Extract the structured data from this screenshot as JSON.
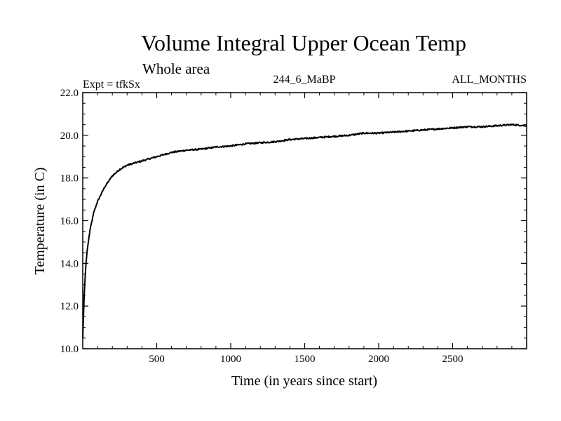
{
  "chart_data": {
    "type": "line",
    "title": "Volume Integral Upper Ocean Temp",
    "subtitle": "Whole area",
    "experiment": "Expt = tfkSx",
    "run_label": "244_6_MaBP",
    "months_label": "ALL_MONTHS",
    "xlabel": "Time (in years since start)",
    "ylabel": "Temperature (in C)",
    "xlim": [
      0,
      3000
    ],
    "ylim": [
      10.0,
      22.0
    ],
    "x_ticks": [
      "500",
      "1000",
      "1500",
      "2000",
      "2500"
    ],
    "y_ticks": [
      "10.0",
      "12.0",
      "14.0",
      "16.0",
      "18.0",
      "20.0",
      "22.0"
    ],
    "grid": false,
    "series": [
      {
        "name": "Volume Integral Upper Ocean Temp",
        "x": [
          0,
          5,
          10,
          20,
          30,
          50,
          75,
          100,
          150,
          200,
          250,
          300,
          350,
          400,
          500,
          600,
          700,
          800,
          900,
          1000,
          1100,
          1200,
          1300,
          1400,
          1500,
          1600,
          1700,
          1800,
          1900,
          2000,
          2100,
          2200,
          2300,
          2400,
          2500,
          2600,
          2700,
          2800,
          2900,
          3000
        ],
        "y": [
          10.5,
          11.5,
          12.5,
          13.8,
          14.6,
          15.6,
          16.4,
          16.9,
          17.6,
          18.1,
          18.4,
          18.6,
          18.7,
          18.8,
          19.0,
          19.2,
          19.3,
          19.35,
          19.45,
          19.5,
          19.6,
          19.65,
          19.7,
          19.8,
          19.85,
          19.9,
          19.95,
          20.0,
          20.1,
          20.1,
          20.15,
          20.2,
          20.25,
          20.3,
          20.35,
          20.4,
          20.4,
          20.45,
          20.5,
          20.45
        ]
      }
    ]
  }
}
